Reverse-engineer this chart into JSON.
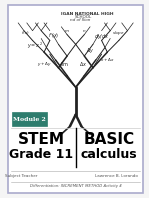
{
  "bg_color": "#ffffff",
  "border_color": "#aaaacc",
  "header_text1": "IGAN NATIONAL HIGH",
  "header_text2": "SCHOOL",
  "header_text3": "nd of Ilion",
  "module_box_color": "#2e7d6e",
  "module_text": "Module 2",
  "module_text_color": "#ffffff",
  "stem_label": "STEM",
  "basic_label": "BASIC",
  "grade_label": "Grade 11",
  "calculus_label": "calculus",
  "subject_teacher_label": "Subject Teacher",
  "lesson_label": "Lawrence B. Lorando",
  "bottom_text": "Differentiation: INCREMENT METHOD Activity 4",
  "divider_color": "#000000",
  "text_color": "#000000",
  "tree_color": "#222222",
  "page_bg": "#f5f5f5"
}
